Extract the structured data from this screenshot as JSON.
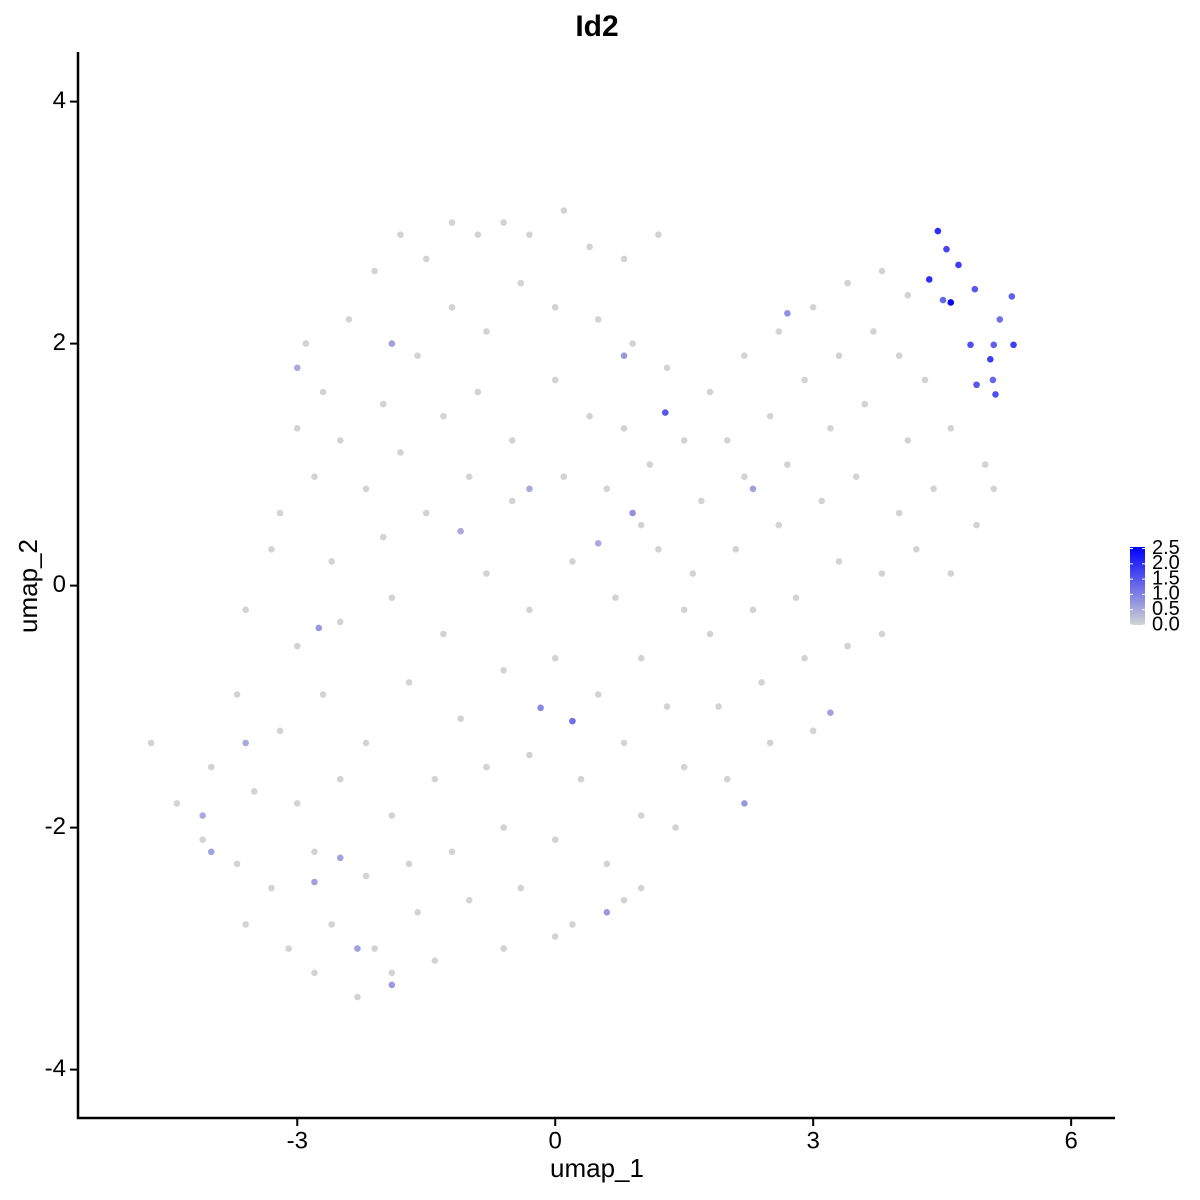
{
  "chart_data": {
    "type": "scatter",
    "title": "Id2",
    "x_label": "umap_1",
    "y_label": "umap_2",
    "x": [
      -2.9,
      -2.7,
      -2.4,
      -2.1,
      -1.8,
      -1.5,
      -1.2,
      -0.9,
      -0.6,
      -0.3,
      0.1,
      0.4,
      0.8,
      1.2,
      -2.5,
      -2.0,
      -1.6,
      -1.2,
      -0.8,
      -0.4,
      0.0,
      0.5,
      0.9,
      1.3,
      -3.0,
      -2.8,
      -3.2,
      -2.2,
      -1.8,
      -1.3,
      -0.9,
      -0.5,
      0.0,
      0.4,
      0.8,
      1.1,
      -3.3,
      -2.6,
      -2.0,
      -1.5,
      -1.0,
      -0.5,
      0.1,
      0.6,
      1.0,
      1.5,
      -3.6,
      -3.0,
      -2.5,
      -1.9,
      -1.3,
      -0.8,
      -0.3,
      0.2,
      0.7,
      1.2,
      -3.7,
      -3.2,
      -2.7,
      -2.2,
      -1.7,
      -1.1,
      -0.6,
      0.0,
      0.5,
      1.0,
      1.5,
      -4.0,
      -3.5,
      -3.0,
      -2.5,
      -1.9,
      -1.4,
      -0.8,
      -0.3,
      0.3,
      0.8,
      1.3,
      -4.1,
      -3.7,
      -3.3,
      -2.8,
      -2.2,
      -1.7,
      -1.2,
      -0.6,
      0.0,
      0.6,
      1.0,
      -3.6,
      -3.1,
      -2.6,
      -2.1,
      -1.6,
      -1.0,
      -0.4,
      0.2,
      0.8,
      -2.8,
      -2.3,
      -1.9,
      -1.4,
      -0.6,
      0.0,
      1.8,
      2.2,
      2.6,
      3.0,
      3.4,
      3.8,
      4.1,
      2.0,
      2.5,
      2.9,
      3.3,
      3.7,
      4.0,
      4.3,
      1.7,
      2.2,
      2.7,
      3.2,
      3.6,
      4.1,
      4.6,
      5.0,
      1.6,
      2.1,
      2.6,
      3.1,
      3.5,
      4.0,
      4.4,
      4.9,
      5.1,
      1.8,
      2.3,
      2.8,
      3.3,
      3.8,
      4.2,
      4.6,
      1.9,
      2.4,
      2.9,
      3.4,
      3.8,
      1.5,
      2.0,
      2.5,
      3.0,
      1.0,
      1.4,
      -4.7,
      -4.4,
      -2.5,
      -3.0,
      -1.9,
      -2.75,
      -2.8,
      -1.1,
      0.5,
      0.9,
      0.8,
      2.7,
      3.2,
      2.2,
      0.6,
      -2.3,
      -1.9,
      -4.0,
      -4.1,
      -3.6,
      2.3,
      -0.3,
      4.6,
      4.35,
      4.45,
      4.69,
      4.88,
      5.31,
      5.33,
      4.83,
      5.06,
      4.9,
      5.1,
      5.09,
      5.12,
      5.17,
      4.55,
      4.51,
      1.28,
      0.2,
      -0.17
    ],
    "values": [
      2.0,
      1.6,
      2.2,
      2.6,
      2.9,
      2.7,
      3.0,
      2.9,
      3.0,
      2.9,
      3.1,
      2.8,
      2.7,
      2.9,
      1.2,
      1.5,
      1.9,
      2.3,
      2.1,
      2.5,
      2.3,
      2.2,
      2.0,
      1.8,
      1.3,
      0.9,
      0.6,
      0.8,
      1.1,
      1.4,
      1.6,
      1.2,
      1.7,
      1.4,
      1.3,
      1.0,
      0.3,
      0.2,
      0.4,
      0.6,
      0.9,
      0.7,
      0.9,
      0.8,
      0.5,
      1.2,
      -0.2,
      -0.5,
      -0.3,
      -0.1,
      -0.4,
      0.1,
      -0.2,
      0.2,
      -0.1,
      0.3,
      -0.9,
      -1.2,
      -0.9,
      -1.3,
      -0.8,
      -1.1,
      -0.7,
      -0.6,
      -0.9,
      -0.6,
      -0.2,
      -1.5,
      -1.7,
      -1.8,
      -1.6,
      -1.9,
      -1.6,
      -1.5,
      -1.4,
      -1.6,
      -1.3,
      -1.0,
      -2.1,
      -2.3,
      -2.5,
      -2.2,
      -2.4,
      -2.3,
      -2.2,
      -2.0,
      -2.1,
      -2.3,
      -1.9,
      -2.8,
      -3.0,
      -2.8,
      -3.0,
      -2.7,
      -2.6,
      -2.5,
      -2.8,
      -2.6,
      -3.2,
      -3.4,
      -3.2,
      -3.1,
      -3.0,
      -2.9,
      1.6,
      1.9,
      2.1,
      2.3,
      2.5,
      2.6,
      2.4,
      1.2,
      1.4,
      1.7,
      1.9,
      2.1,
      1.9,
      1.7,
      0.7,
      0.9,
      1.0,
      1.3,
      1.5,
      1.2,
      1.3,
      1.0,
      0.1,
      0.3,
      0.5,
      0.7,
      0.9,
      0.6,
      0.8,
      0.5,
      0.8,
      -0.4,
      -0.2,
      -0.1,
      0.2,
      0.1,
      0.3,
      0.1,
      -1.0,
      -0.8,
      -0.6,
      -0.5,
      -0.4,
      -1.5,
      -1.6,
      -1.3,
      -1.2,
      -2.5,
      -2.0,
      -1.3,
      -1.8,
      -2.25,
      1.8,
      2.0,
      -0.35,
      -2.45,
      0.45,
      0.35,
      0.6,
      1.9,
      2.25,
      -1.05,
      -1.8,
      -2.7,
      -3.0,
      -3.3,
      -2.2,
      -1.9,
      -1.3,
      0.8,
      0.8,
      2.34,
      2.53,
      2.93,
      2.65,
      2.45,
      2.39,
      1.99,
      1.99,
      1.87,
      1.66,
      1.99,
      1.7,
      1.58,
      2.2,
      2.78,
      2.36,
      1.43,
      -1.12,
      -1.01
    ],
    "expression": [
      0,
      0,
      0,
      0,
      0,
      0,
      0,
      0,
      0,
      0,
      0,
      0,
      0,
      0,
      0,
      0,
      0,
      0,
      0,
      0,
      0,
      0,
      0,
      0,
      0,
      0,
      0,
      0,
      0,
      0,
      0,
      0,
      0,
      0,
      0,
      0,
      0,
      0,
      0,
      0,
      0,
      0,
      0,
      0,
      0,
      0,
      0,
      0,
      0,
      0,
      0,
      0,
      0,
      0,
      0,
      0,
      0,
      0,
      0,
      0,
      0,
      0,
      0,
      0,
      0,
      0,
      0,
      0,
      0,
      0,
      0,
      0,
      0,
      0,
      0,
      0,
      0,
      0,
      0,
      0,
      0,
      0,
      0,
      0,
      0,
      0,
      0,
      0,
      0,
      0,
      0,
      0,
      0,
      0,
      0,
      0,
      0,
      0,
      0,
      0,
      0,
      0,
      0,
      0,
      0,
      0,
      0,
      0,
      0,
      0,
      0,
      0,
      0,
      0,
      0,
      0,
      0,
      0,
      0,
      0,
      0,
      0,
      0,
      0,
      0,
      0,
      0,
      0,
      0,
      0,
      0,
      0,
      0,
      0,
      0,
      0,
      0,
      0,
      0,
      0,
      0,
      0,
      0,
      0,
      0,
      0,
      0,
      0,
      0,
      0,
      0,
      0,
      0,
      0,
      0,
      0.6,
      0.5,
      0.6,
      0.7,
      0.6,
      0.5,
      0.5,
      0.8,
      0.7,
      0.8,
      0.6,
      0.7,
      0.7,
      0.6,
      0.7,
      0.6,
      0.5,
      0.5,
      0.6,
      0.5,
      2.5,
      2.0,
      2.0,
      1.8,
      1.5,
      1.4,
      1.8,
      1.6,
      1.8,
      1.5,
      1.4,
      1.3,
      1.6,
      1.2,
      1.7,
      1.3,
      1.5,
      1.2,
      0.9
    ],
    "xlim": [
      -5.55,
      6.51
    ],
    "ylim": [
      -4.4,
      4.41
    ],
    "xticks": [
      -3,
      0,
      3,
      6
    ],
    "yticks": [
      -4,
      -2,
      0,
      2,
      4
    ],
    "clim": [
      0,
      2.55
    ],
    "cticks": [
      {
        "value": 0,
        "label": "0.0"
      },
      {
        "value": 0.5,
        "label": "0.5"
      },
      {
        "value": 1,
        "label": "1.0"
      },
      {
        "value": 1.5,
        "label": "1.5"
      },
      {
        "value": 2,
        "label": "2.0"
      },
      {
        "value": 2.5,
        "label": "2.5"
      }
    ],
    "color_low": "#d3d3d3",
    "color_high": "#0000ff",
    "grid": false
  }
}
